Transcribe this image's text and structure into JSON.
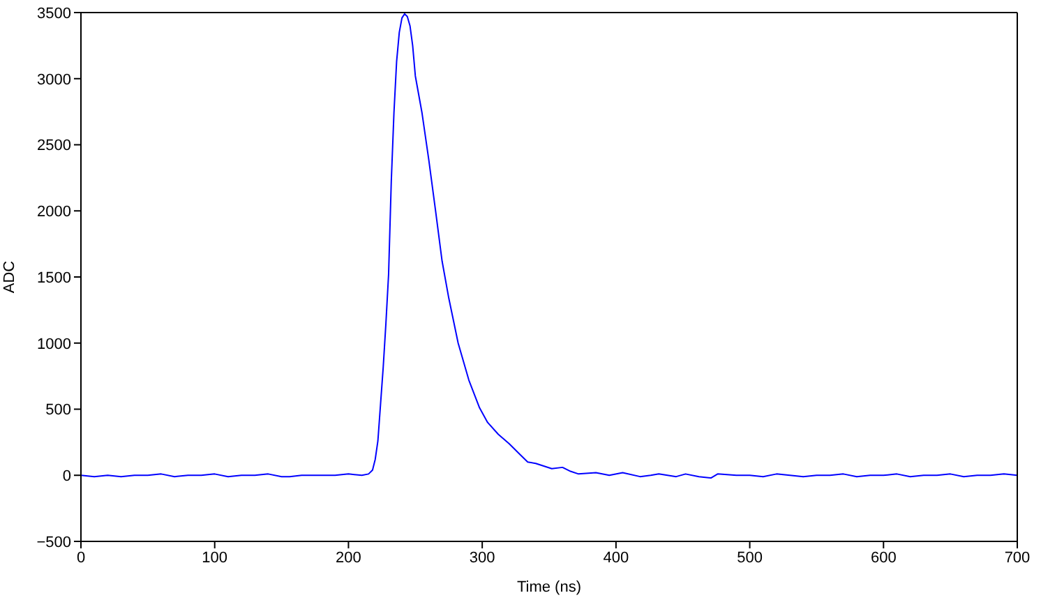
{
  "chart_data": {
    "type": "line",
    "xlabel": "Time (ns)",
    "ylabel": "ADC",
    "x": [
      0,
      10,
      20,
      30,
      40,
      50,
      60,
      70,
      80,
      90,
      100,
      110,
      120,
      130,
      140,
      150,
      156,
      165,
      180,
      190,
      200,
      210,
      215,
      218,
      220,
      222,
      224,
      226,
      228,
      230,
      232,
      234,
      236,
      238,
      240,
      242,
      244,
      246,
      248,
      250,
      255,
      260,
      265,
      270,
      275,
      282,
      290,
      298,
      304,
      312,
      320,
      328,
      334,
      340,
      352,
      360,
      366,
      372,
      385,
      395,
      405,
      418,
      426,
      432,
      445,
      452,
      462,
      471,
      476,
      490,
      500,
      510,
      520,
      530,
      540,
      550,
      560,
      570,
      580,
      590,
      600,
      610,
      620,
      630,
      640,
      650,
      660,
      670,
      680,
      690,
      700
    ],
    "series": [
      {
        "color": "#0000ff",
        "values": [
          0,
          -10,
          0,
          -10,
          0,
          0,
          10,
          -10,
          0,
          0,
          10,
          -10,
          0,
          0,
          10,
          -10,
          -10,
          0,
          0,
          0,
          10,
          0,
          10,
          40,
          120,
          260,
          540,
          820,
          1150,
          1520,
          2220,
          2740,
          3130,
          3350,
          3460,
          3490,
          3470,
          3400,
          3250,
          3020,
          2740,
          2390,
          2010,
          1620,
          1340,
          1000,
          720,
          510,
          400,
          310,
          240,
          160,
          100,
          90,
          50,
          60,
          30,
          10,
          20,
          0,
          20,
          -10,
          0,
          10,
          -10,
          10,
          -10,
          -20,
          10,
          0,
          0,
          -10,
          10,
          0,
          -10,
          0,
          0,
          10,
          -10,
          0,
          0,
          10,
          -10,
          0,
          0,
          10,
          -10,
          0,
          0,
          10,
          0
        ]
      }
    ],
    "xlim": [
      0,
      700
    ],
    "xticks": [
      0,
      100,
      200,
      300,
      400,
      500,
      600,
      700
    ],
    "ylim": [
      -500,
      3500
    ],
    "yticks": [
      -500,
      0,
      500,
      1000,
      1500,
      2000,
      2500,
      3000,
      3500
    ],
    "marker": "none"
  }
}
